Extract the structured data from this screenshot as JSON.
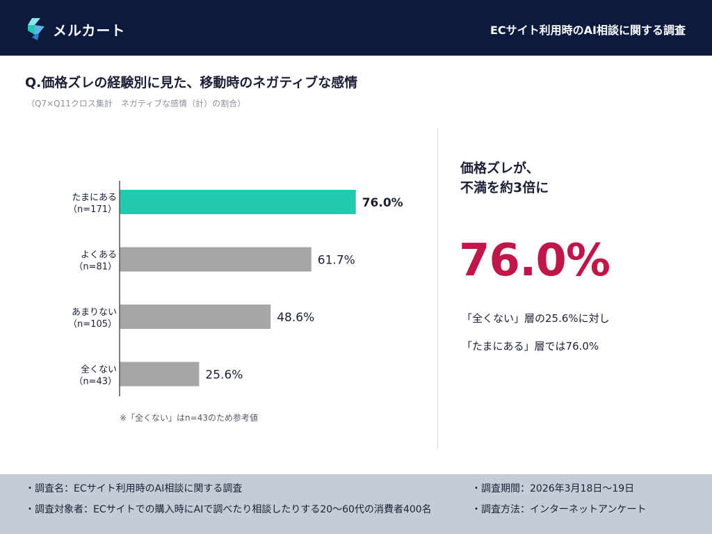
{
  "header": {
    "logo_text": "メルカート",
    "title": "ECサイト利用時のAI相談に関する調査"
  },
  "question": {
    "title": "Q.価格ズレの経験別に見た、移動時のネガティブな感情",
    "subtitle": "（Q7×Q11クロス集計　ネガティブな感情（計）の割合）"
  },
  "chart_data": {
    "type": "bar",
    "orientation": "horizontal",
    "categories": [
      {
        "label": "たまにある",
        "n": "（n=171）"
      },
      {
        "label": "よくある",
        "n": "（n=81）"
      },
      {
        "label": "あまりない",
        "n": "（n=105）"
      },
      {
        "label": "全くない",
        "n": "（n=43）"
      }
    ],
    "values": [
      76.0,
      61.7,
      48.6,
      25.6
    ],
    "value_labels": [
      "76.0%",
      "61.7%",
      "48.6%",
      "25.6%"
    ],
    "highlight_index": 0,
    "xlim": [
      0,
      100
    ],
    "grid": false,
    "colors": {
      "highlight": "#22c9ae",
      "default": "#a6a6a6",
      "axis": "#555555"
    }
  },
  "chart_note": "※「全くない」はn=43のため参考値",
  "summary": {
    "headline_line1": "価格ズレが、",
    "headline_line2": "不満を約3倍に",
    "big_value": "76.0%",
    "compare_line1": "「全くない」層の25.6%に対し",
    "compare_line2": "「たまにある」層では76.0%"
  },
  "footer": {
    "survey_name": "・調査名：ECサイト利用時のAI相談に関する調査",
    "survey_target": "・調査対象者：ECサイトでの購入時にAIで調べたり相談したりする20〜60代の消費者400名",
    "survey_period": "・調査期間：2026年3月18日〜19日",
    "survey_method": "・調査方法：インターネットアンケート"
  },
  "colors": {
    "header_bg": "#0c1a3d",
    "accent_red": "#c0174a",
    "accent_teal": "#22c9ae",
    "footer_bg": "#c5ccd5"
  }
}
